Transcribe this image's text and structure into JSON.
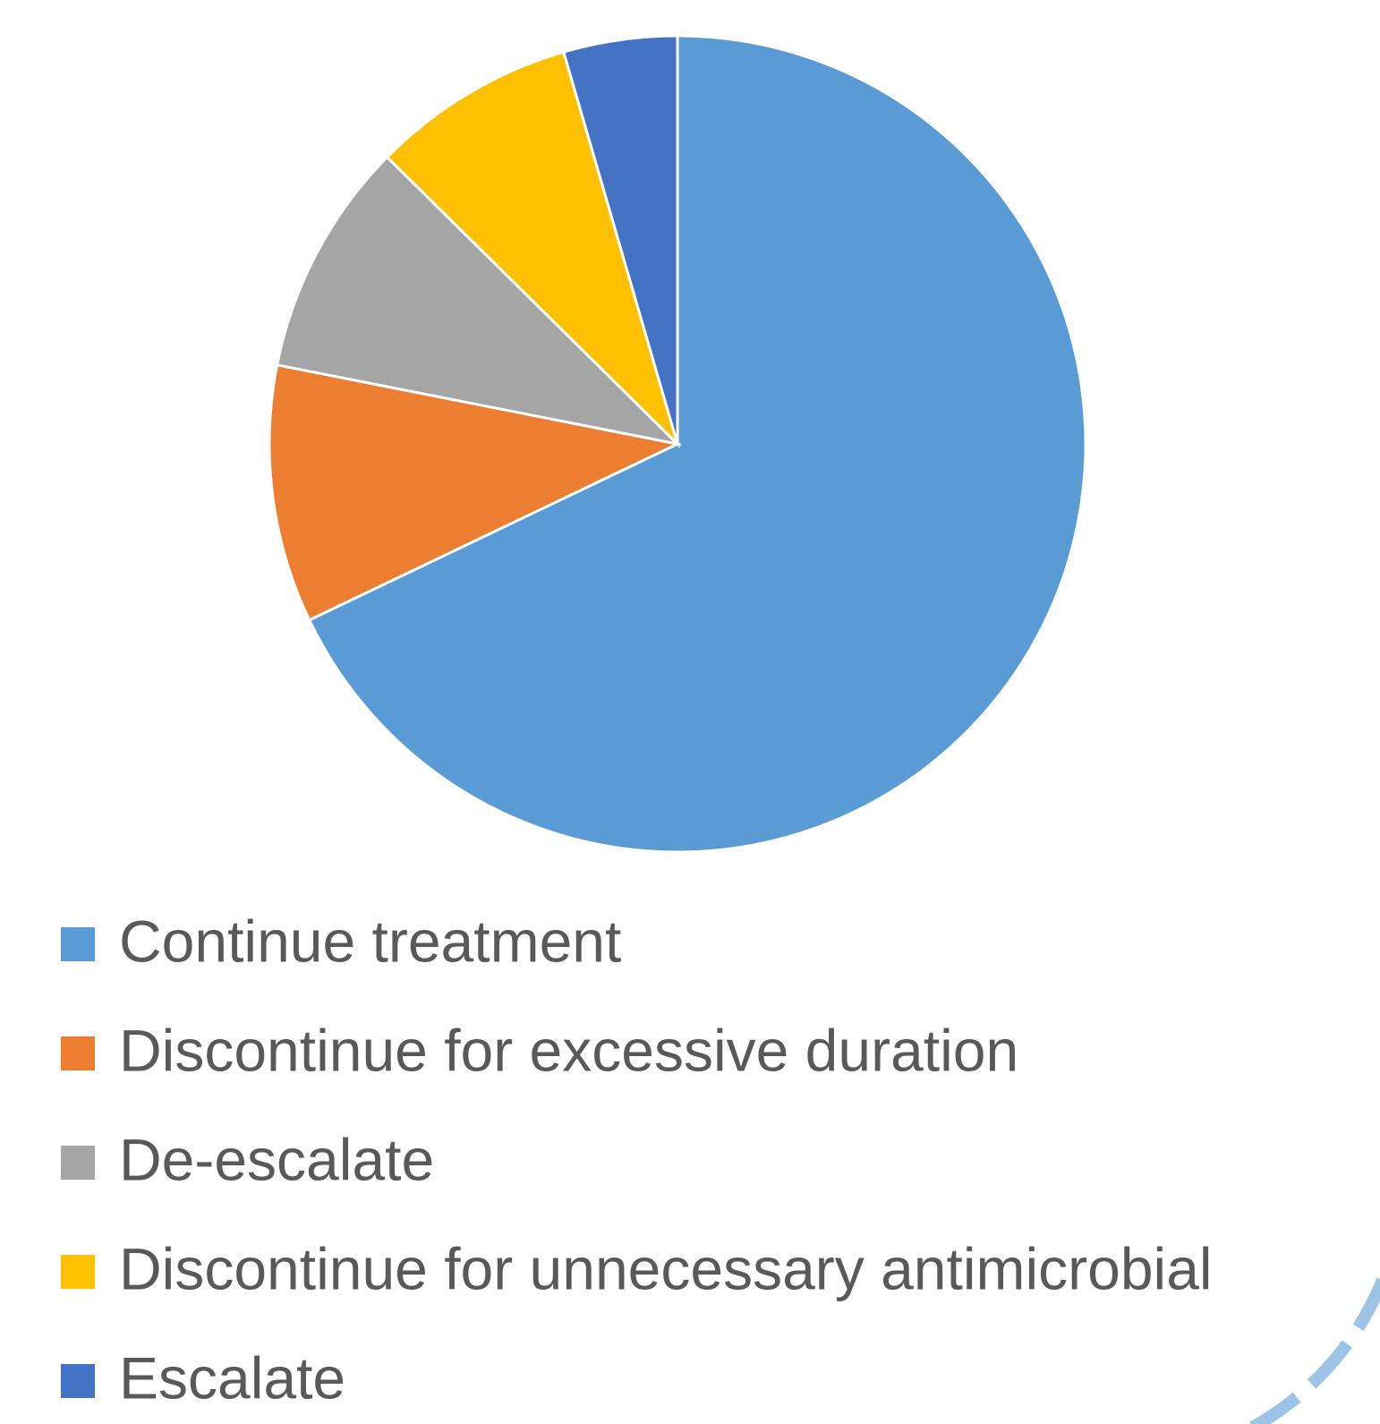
{
  "chart_data": {
    "type": "pie",
    "categories": [
      "Continue treatment",
      "Discontinue for excessive duration",
      "De-escalate",
      "Discontinue for unnecessary antimicrobial",
      "Escalate"
    ],
    "values": [
      67.9,
      10.2,
      9.3,
      8.1,
      4.5
    ],
    "colors": [
      "#5b9bd5",
      "#ed7d31",
      "#a5a5a5",
      "#ffc000",
      "#4472c4"
    ],
    "legend": "bottom"
  }
}
